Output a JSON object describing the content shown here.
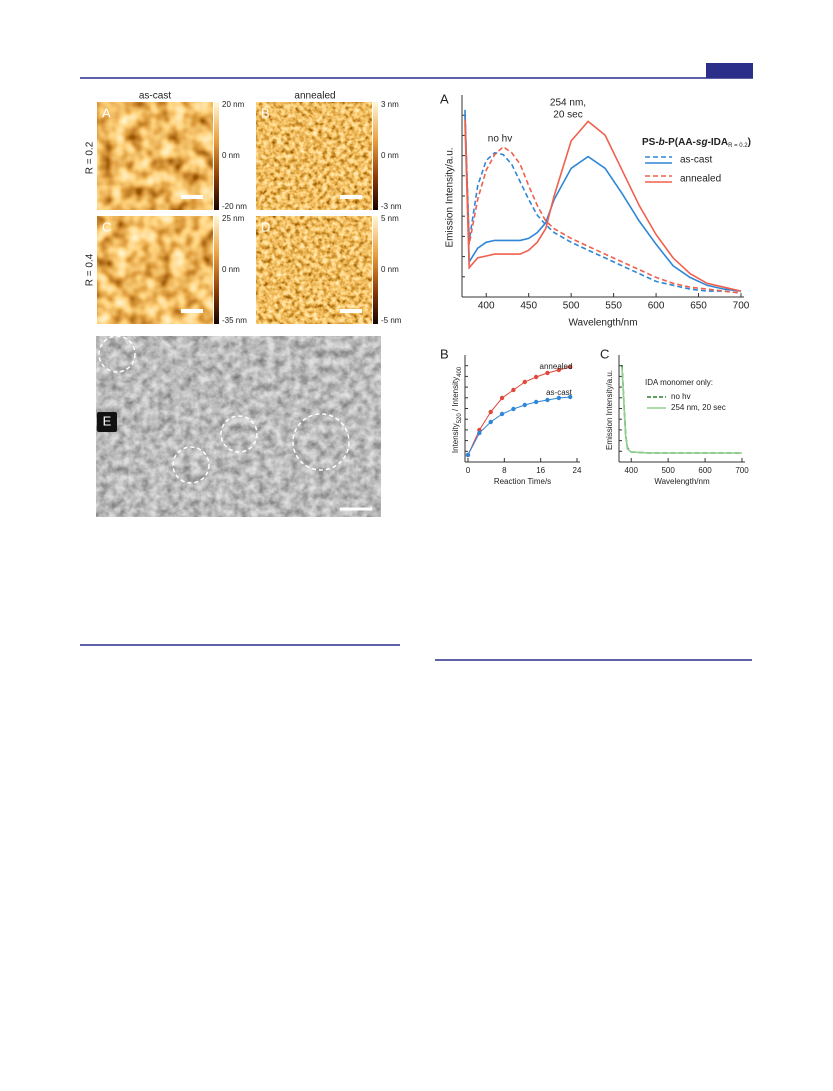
{
  "figure1": {
    "col_labels": [
      "as-cast",
      "annealed"
    ],
    "row_labels": [
      "R = 0.2",
      "R = 0.4"
    ],
    "panels": [
      {
        "label": "A",
        "scale": [
          "20 nm",
          "0 nm",
          "-20 nm"
        ]
      },
      {
        "label": "B",
        "scale": [
          "3 nm",
          "0 nm",
          "-3 nm"
        ]
      },
      {
        "label": "C",
        "scale": [
          "25 nm",
          "0 nm",
          "-35 nm"
        ]
      },
      {
        "label": "D",
        "scale": [
          "5 nm",
          "0 nm",
          "-5 nm"
        ]
      }
    ],
    "tem_label": "E"
  },
  "chart_data": [
    {
      "type": "line",
      "panel": "A",
      "xlabel": "Wavelength/nm",
      "ylabel": "Emission Intensity/a.u.",
      "annotations": [
        "no hv",
        "254 nm,",
        "20 sec"
      ],
      "legend_title": [
        "PS-",
        "b",
        "-P(AA-",
        "sg",
        "-IDA",
        "R = 0.2",
        ")"
      ],
      "legend": [
        "as-cast",
        "annealed"
      ],
      "x": [
        375,
        380,
        390,
        400,
        410,
        420,
        430,
        440,
        450,
        460,
        470,
        480,
        500,
        520,
        540,
        560,
        580,
        600,
        620,
        640,
        660,
        680,
        700
      ],
      "xlim": [
        375,
        700
      ],
      "xticks": [
        400,
        450,
        500,
        550,
        600,
        650,
        700
      ],
      "ylim": [
        0,
        100
      ],
      "series": [
        {
          "legend": 0,
          "dashed": true,
          "color": "#2f86d6",
          "values": [
            92,
            28,
            56,
            69,
            73,
            72,
            67,
            58,
            49,
            41,
            36,
            32,
            27,
            23,
            19,
            15,
            11,
            7,
            5,
            3,
            2,
            2,
            1
          ]
        },
        {
          "legend": 0,
          "dashed": false,
          "color": "#2f86d6",
          "values": [
            95,
            17,
            24,
            27,
            28,
            28,
            28,
            28,
            29,
            32,
            37,
            49,
            65,
            71,
            65,
            52,
            38,
            26,
            15,
            9,
            5,
            3,
            2
          ]
        },
        {
          "legend": 1,
          "dashed": true,
          "color": "#f0604c",
          "values": [
            90,
            26,
            49,
            64,
            72,
            76,
            73,
            67,
            56,
            46,
            38,
            34,
            29,
            25,
            21,
            17,
            13,
            9,
            6,
            4,
            3,
            2,
            1
          ]
        },
        {
          "legend": 1,
          "dashed": false,
          "color": "#f0604c",
          "values": [
            88,
            14,
            19,
            20,
            21,
            21,
            21,
            21,
            23,
            27,
            34,
            51,
            79,
            89,
            82,
            64,
            46,
            31,
            19,
            11,
            6,
            4,
            2
          ]
        }
      ]
    },
    {
      "type": "scatter",
      "panel": "B",
      "xlabel": "Reaction Time/s",
      "ylabel": [
        "Intensity",
        "520",
        " / Intensity",
        "400"
      ],
      "x": [
        0,
        2.5,
        5,
        7.5,
        10,
        12.5,
        15,
        17.5,
        20,
        22.5
      ],
      "xlim": [
        0,
        24
      ],
      "xticks": [
        0,
        8,
        16,
        24
      ],
      "ylim": [
        0,
        100
      ],
      "series": [
        {
          "name": "annealed",
          "color": "#e0483a",
          "values": [
            5,
            30,
            48,
            62,
            70,
            78,
            83,
            87,
            90,
            93
          ]
        },
        {
          "name": "as-cast",
          "color": "#2f86d6",
          "values": [
            5,
            27,
            38,
            46,
            51,
            55,
            58,
            60,
            62,
            63
          ]
        }
      ]
    },
    {
      "type": "line",
      "panel": "C",
      "xlabel": "Wavelength/nm",
      "ylabel": "Emission Intensity/a.u.",
      "legend_title": "IDA monomer only:",
      "x": [
        375,
        380,
        385,
        390,
        400,
        450,
        500,
        600,
        700
      ],
      "xlim": [
        375,
        700
      ],
      "xticks": [
        400,
        500,
        600,
        700
      ],
      "ylim": [
        0,
        100
      ],
      "series": [
        {
          "name": "no hv",
          "dashed": true,
          "color": "#2e7d2e",
          "values": [
            95,
            60,
            25,
            12,
            8,
            7,
            7,
            7,
            7
          ]
        },
        {
          "name": "254 nm, 20 sec",
          "dashed": false,
          "color": "#8fd08f",
          "values": [
            93,
            58,
            24,
            11,
            8,
            7,
            7,
            7,
            7
          ]
        }
      ]
    }
  ]
}
